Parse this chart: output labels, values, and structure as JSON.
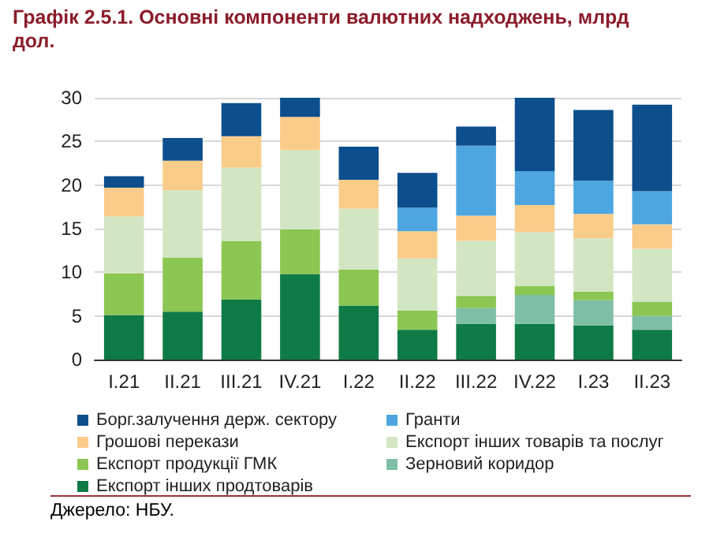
{
  "chart_data": {
    "type": "bar",
    "title": "Графік 2.5.1. Основні компоненти валютних надходжень, млрд дол.",
    "stacked": true,
    "categories": [
      "I.21",
      "II.21",
      "III.21",
      "IV.21",
      "I.22",
      "II.22",
      "III.22",
      "IV.22",
      "I.23",
      "II.23"
    ],
    "series": [
      {
        "name": "Експорт інших продтоварів",
        "color": "#0e7a45",
        "values": [
          5.1,
          5.5,
          6.9,
          9.8,
          6.2,
          3.4,
          4.1,
          4.1,
          3.9,
          3.4
        ]
      },
      {
        "name": "Зерновий коридор",
        "color": "#7fbfa6",
        "values": [
          null,
          null,
          null,
          null,
          null,
          null,
          1.8,
          3.3,
          2.9,
          1.6
        ]
      },
      {
        "name": "Експорт продукції ГМК",
        "color": "#8cc653",
        "values": [
          4.8,
          6.2,
          6.7,
          5.1,
          4.1,
          2.2,
          1.4,
          1.0,
          1.0,
          1.6
        ]
      },
      {
        "name": "Експорт інших товарів та послуг",
        "color": "#d3e6c4",
        "values": [
          6.5,
          7.7,
          8.4,
          9.1,
          7.0,
          6.0,
          6.3,
          6.2,
          6.1,
          6.1
        ]
      },
      {
        "name": "Грошові перекази",
        "color": "#f9cc8a",
        "values": [
          3.3,
          3.4,
          3.6,
          3.8,
          3.3,
          3.1,
          2.9,
          3.1,
          2.8,
          2.8
        ]
      },
      {
        "name": "Гранти",
        "color": "#4da6e0",
        "values": [
          null,
          null,
          null,
          null,
          null,
          2.7,
          8.0,
          3.9,
          3.8,
          3.8
        ]
      },
      {
        "name": "Борг.залучення держ. сектору",
        "color": "#0d4e8c",
        "values": [
          1.3,
          2.6,
          3.8,
          2.2,
          3.8,
          4.0,
          2.2,
          8.4,
          8.1,
          9.9
        ]
      }
    ],
    "ylim": [
      0,
      30
    ],
    "yticks": [
      0,
      5,
      10,
      15,
      20,
      25,
      30
    ],
    "grid": "y",
    "legend": "bottom",
    "annotations": [
      "Джерело: НБУ."
    ]
  }
}
